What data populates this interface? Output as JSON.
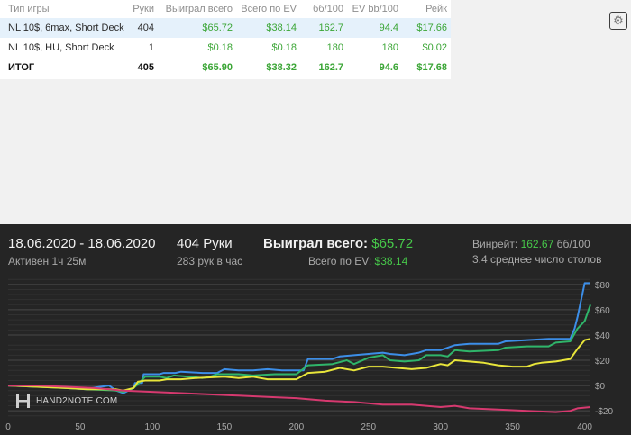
{
  "table": {
    "headers": [
      "Тип игры",
      "Руки",
      "Выиграл всего",
      "Всего по EV",
      "бб/100",
      "EV bb/100",
      "Рейк"
    ],
    "rows": [
      {
        "game": "NL 10$, 6max, Short Deck",
        "hands": "404",
        "won": "$65.72",
        "ev": "$38.14",
        "bb100": "162.7",
        "evbb100": "94.4",
        "rake": "$17.66"
      },
      {
        "game": "NL 10$, HU, Short Deck",
        "hands": "1",
        "won": "$0.18",
        "ev": "$0.18",
        "bb100": "180",
        "evbb100": "180",
        "rake": "$0.02"
      }
    ],
    "total": {
      "game": "ИТОГ",
      "hands": "405",
      "won": "$65.90",
      "ev": "$38.32",
      "bb100": "162.7",
      "evbb100": "94.6",
      "rake": "$17.68"
    }
  },
  "summary": {
    "date_range": "18.06.2020 - 18.06.2020",
    "active": "Активен 1ч 25м",
    "hands": "404 Руки",
    "hands_per_hour": "283 рук в час",
    "won_label": "Выиграл всего:",
    "won_value": "$65.72",
    "ev_label": "Всего по EV:",
    "ev_value": "$38.14",
    "winrate_label": "Винрейт:",
    "winrate_value": "162.67",
    "winrate_unit": "бб/100",
    "tables": "3.4 среднее число столов"
  },
  "logo_text": "HAND2NOTE.COM",
  "colors": {
    "blue": "#3c8ee8",
    "green": "#2fb56a",
    "yellow": "#e8e53a",
    "pink": "#d6396f",
    "panel_bg": "#252525",
    "positive": "#47c94a"
  },
  "chart_data": {
    "type": "line",
    "title": "",
    "xlabel": "",
    "ylabel": "",
    "xlim": [
      0,
      404
    ],
    "ylim": [
      -27,
      87
    ],
    "x_ticks": [
      0,
      50,
      100,
      150,
      200,
      250,
      300,
      350,
      400
    ],
    "y_ticks": [
      -20,
      0,
      20,
      40,
      60,
      80
    ],
    "y_tick_labels": [
      "-$20",
      "$0",
      "$20",
      "$40",
      "$60",
      "$80"
    ],
    "grid": true,
    "series": [
      {
        "color": "blue",
        "points": [
          [
            0,
            0
          ],
          [
            20,
            -1
          ],
          [
            28,
            0
          ],
          [
            40,
            -2
          ],
          [
            55,
            -3
          ],
          [
            56,
            -2
          ],
          [
            58,
            -2
          ],
          [
            70,
            0
          ],
          [
            75,
            -4
          ],
          [
            80,
            -6
          ],
          [
            87,
            -2
          ],
          [
            88,
            2
          ],
          [
            93,
            2
          ],
          [
            94,
            9
          ],
          [
            105,
            9
          ],
          [
            108,
            10
          ],
          [
            116,
            10
          ],
          [
            120,
            11
          ],
          [
            135,
            10
          ],
          [
            145,
            10
          ],
          [
            150,
            13
          ],
          [
            160,
            12
          ],
          [
            170,
            12
          ],
          [
            180,
            13
          ],
          [
            190,
            12
          ],
          [
            205,
            12
          ],
          [
            208,
            21
          ],
          [
            225,
            21
          ],
          [
            230,
            23
          ],
          [
            240,
            24
          ],
          [
            260,
            26
          ],
          [
            265,
            25
          ],
          [
            275,
            24
          ],
          [
            285,
            26
          ],
          [
            290,
            28
          ],
          [
            300,
            28
          ],
          [
            310,
            32
          ],
          [
            320,
            33
          ],
          [
            340,
            33
          ],
          [
            345,
            35
          ],
          [
            375,
            37
          ],
          [
            380,
            37
          ],
          [
            390,
            37
          ],
          [
            393,
            45
          ],
          [
            395,
            54
          ],
          [
            400,
            81
          ],
          [
            404,
            81
          ]
        ]
      },
      {
        "color": "green",
        "points": [
          [
            0,
            0
          ],
          [
            20,
            -1
          ],
          [
            40,
            -2
          ],
          [
            55,
            -3
          ],
          [
            75,
            -4
          ],
          [
            80,
            -5
          ],
          [
            87,
            -2
          ],
          [
            90,
            1
          ],
          [
            95,
            7
          ],
          [
            105,
            7
          ],
          [
            110,
            6
          ],
          [
            115,
            8
          ],
          [
            125,
            7
          ],
          [
            135,
            6
          ],
          [
            140,
            7
          ],
          [
            145,
            9
          ],
          [
            160,
            9
          ],
          [
            170,
            8
          ],
          [
            185,
            9
          ],
          [
            200,
            9
          ],
          [
            208,
            16
          ],
          [
            225,
            17
          ],
          [
            235,
            20
          ],
          [
            240,
            17
          ],
          [
            250,
            22
          ],
          [
            260,
            24
          ],
          [
            265,
            20
          ],
          [
            275,
            19
          ],
          [
            285,
            20
          ],
          [
            290,
            24
          ],
          [
            300,
            24
          ],
          [
            305,
            23
          ],
          [
            310,
            28
          ],
          [
            320,
            27
          ],
          [
            340,
            28
          ],
          [
            345,
            30
          ],
          [
            360,
            31
          ],
          [
            375,
            31
          ],
          [
            380,
            34
          ],
          [
            390,
            35
          ],
          [
            395,
            45
          ],
          [
            400,
            51
          ],
          [
            404,
            64
          ]
        ]
      },
      {
        "color": "yellow",
        "points": [
          [
            0,
            0
          ],
          [
            20,
            -1
          ],
          [
            40,
            -2
          ],
          [
            55,
            -3
          ],
          [
            75,
            -3
          ],
          [
            80,
            -4
          ],
          [
            87,
            -2
          ],
          [
            90,
            3
          ],
          [
            95,
            4
          ],
          [
            105,
            4
          ],
          [
            110,
            5
          ],
          [
            120,
            5
          ],
          [
            130,
            6
          ],
          [
            150,
            7
          ],
          [
            160,
            6
          ],
          [
            170,
            7
          ],
          [
            180,
            5
          ],
          [
            190,
            5
          ],
          [
            200,
            5
          ],
          [
            208,
            10
          ],
          [
            220,
            11
          ],
          [
            230,
            14
          ],
          [
            240,
            12
          ],
          [
            250,
            15
          ],
          [
            260,
            15
          ],
          [
            270,
            14
          ],
          [
            280,
            13
          ],
          [
            290,
            14
          ],
          [
            300,
            17
          ],
          [
            305,
            16
          ],
          [
            310,
            20
          ],
          [
            320,
            19
          ],
          [
            330,
            18
          ],
          [
            340,
            16
          ],
          [
            350,
            15
          ],
          [
            360,
            15
          ],
          [
            365,
            17
          ],
          [
            370,
            18
          ],
          [
            380,
            19
          ],
          [
            390,
            21
          ],
          [
            395,
            29
          ],
          [
            400,
            36
          ],
          [
            404,
            37
          ]
        ]
      },
      {
        "color": "pink",
        "points": [
          [
            0,
            0
          ],
          [
            20,
            0
          ],
          [
            40,
            -1
          ],
          [
            60,
            -2
          ],
          [
            80,
            -4
          ],
          [
            100,
            -5
          ],
          [
            120,
            -6
          ],
          [
            140,
            -7
          ],
          [
            160,
            -8
          ],
          [
            180,
            -9
          ],
          [
            200,
            -10
          ],
          [
            220,
            -12
          ],
          [
            240,
            -13
          ],
          [
            260,
            -15
          ],
          [
            280,
            -15
          ],
          [
            300,
            -17
          ],
          [
            310,
            -16
          ],
          [
            320,
            -18
          ],
          [
            340,
            -19
          ],
          [
            360,
            -20
          ],
          [
            380,
            -21
          ],
          [
            390,
            -20
          ],
          [
            395,
            -18
          ],
          [
            404,
            -17
          ]
        ]
      }
    ]
  }
}
